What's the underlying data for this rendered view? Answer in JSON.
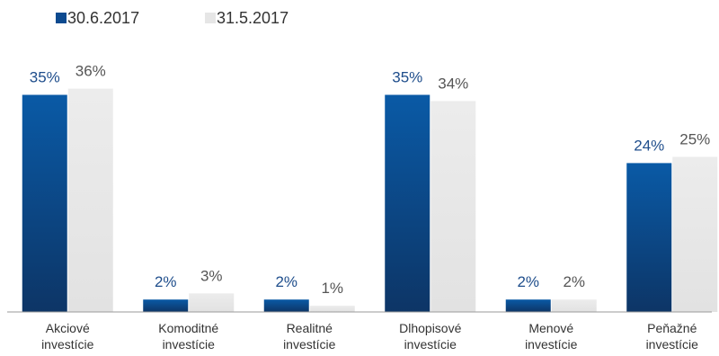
{
  "chart_data": {
    "type": "bar",
    "title": "",
    "xlabel": "",
    "ylabel": "",
    "ylim": [
      0,
      40
    ],
    "grid": false,
    "legend_position": "top-left",
    "categories": [
      [
        "Akciové",
        "investície"
      ],
      [
        "Komoditné",
        "investície"
      ],
      [
        "Realitné",
        "investície"
      ],
      [
        "Dlhopisové",
        "investície"
      ],
      [
        "Menové",
        "investície"
      ],
      [
        "Peňažné",
        "investície"
      ]
    ],
    "series": [
      {
        "name": "30.6.2017",
        "values": [
          35,
          2,
          2,
          35,
          2,
          24
        ],
        "labels": [
          "35%",
          "2%",
          "2%",
          "35%",
          "2%",
          "24%"
        ],
        "color": "#0d4a8f",
        "label_color": "#1f4e8c"
      },
      {
        "name": "31.5.2017",
        "values": [
          36,
          3,
          1,
          34,
          2,
          25
        ],
        "labels": [
          "36%",
          "3%",
          "1%",
          "34%",
          "2%",
          "25%"
        ],
        "color": "#e8e8e8",
        "label_color": "#555555"
      }
    ]
  }
}
